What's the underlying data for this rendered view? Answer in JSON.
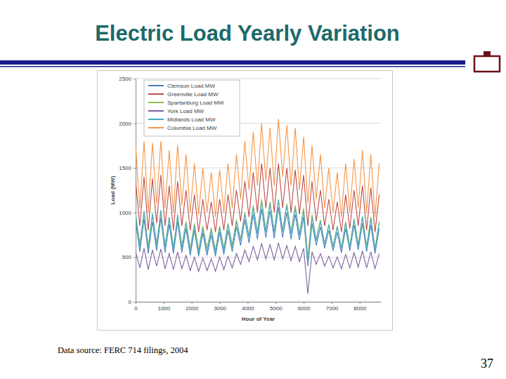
{
  "chart_data": {
    "type": "line",
    "title": "Electric Load Yearly Variation",
    "x_label": "Hour of Year",
    "y_label": "Load (MW)",
    "x": [
      0,
      150,
      300,
      450,
      600,
      750,
      900,
      1050,
      1200,
      1350,
      1500,
      1650,
      1800,
      1950,
      2100,
      2250,
      2400,
      2550,
      2700,
      2850,
      3000,
      3150,
      3300,
      3450,
      3600,
      3750,
      3900,
      4050,
      4200,
      4350,
      4500,
      4650,
      4800,
      4950,
      5100,
      5250,
      5400,
      5550,
      5700,
      5850,
      6000,
      6150,
      6300,
      6450,
      6600,
      6750,
      6900,
      7050,
      7200,
      7350,
      7500,
      7650,
      7800,
      7950,
      8100,
      8250,
      8400,
      8550,
      8700
    ],
    "series": [
      {
        "name": "Clemson Load MW",
        "color": "#4a7ebb",
        "values": [
          900,
          560,
          930,
          540,
          900,
          570,
          940,
          550,
          870,
          540,
          900,
          550,
          820,
          520,
          800,
          510,
          770,
          520,
          750,
          510,
          780,
          530,
          800,
          560,
          840,
          630,
          920,
          660,
          980,
          700,
          1040,
          720,
          1020,
          710,
          1060,
          720,
          1000,
          700,
          980,
          690,
          950,
          400,
          880,
          630,
          840,
          600,
          800,
          570,
          780,
          550,
          820,
          570,
          860,
          580,
          880,
          560,
          860,
          540,
          820
        ]
      },
      {
        "name": "Greenville Load MW",
        "color": "#be4b48",
        "values": [
          1350,
          850,
          1400,
          800,
          1380,
          880,
          1420,
          850,
          1300,
          800,
          1350,
          850,
          1250,
          800,
          1200,
          780,
          1150,
          800,
          1120,
          780,
          1150,
          800,
          1200,
          850,
          1250,
          900,
          1350,
          950,
          1450,
          1000,
          1550,
          1050,
          1500,
          1000,
          1550,
          1050,
          1500,
          1000,
          1480,
          980,
          1420,
          850,
          1350,
          900,
          1250,
          850,
          1150,
          800,
          1120,
          780,
          1200,
          820,
          1250,
          850,
          1300,
          800,
          1280,
          780,
          1200
        ]
      },
      {
        "name": "Spartanburg Load MW",
        "color": "#98b954",
        "values": [
          950,
          650,
          1000,
          620,
          980,
          660,
          1000,
          640,
          930,
          620,
          950,
          630,
          900,
          600,
          880,
          580,
          850,
          600,
          830,
          580,
          850,
          600,
          880,
          640,
          920,
          700,
          1000,
          740,
          1080,
          780,
          1150,
          800,
          1120,
          790,
          1150,
          800,
          1100,
          780,
          1080,
          760,
          1050,
          500,
          980,
          700,
          920,
          650,
          870,
          620,
          850,
          600,
          900,
          620,
          930,
          640,
          960,
          620,
          950,
          600,
          900
        ]
      },
      {
        "name": "York Load MW",
        "color": "#7d60a0",
        "values": [
          560,
          380,
          600,
          360,
          580,
          400,
          590,
          370,
          540,
          360,
          560,
          370,
          520,
          350,
          500,
          340,
          490,
          350,
          480,
          340,
          500,
          360,
          510,
          380,
          540,
          420,
          580,
          450,
          620,
          470,
          650,
          480,
          640,
          470,
          660,
          480,
          630,
          460,
          620,
          450,
          600,
          90,
          560,
          420,
          540,
          400,
          510,
          380,
          500,
          370,
          530,
          380,
          550,
          390,
          570,
          380,
          560,
          370,
          540
        ]
      },
      {
        "name": "Midlands Load MW",
        "color": "#46aac5",
        "values": [
          1000,
          600,
          1020,
          580,
          990,
          620,
          1030,
          600,
          950,
          580,
          980,
          590,
          880,
          560,
          850,
          550,
          820,
          560,
          800,
          550,
          830,
          570,
          860,
          600,
          900,
          680,
          980,
          720,
          1050,
          760,
          1120,
          780,
          1100,
          770,
          1140,
          780,
          1080,
          760,
          1050,
          740,
          1020,
          420,
          950,
          680,
          900,
          640,
          860,
          610,
          840,
          590,
          880,
          610,
          920,
          620,
          950,
          600,
          930,
          580,
          880
        ]
      },
      {
        "name": "Columbia Load MW",
        "color": "#f79646",
        "values": [
          1750,
          1050,
          1800,
          1000,
          1780,
          1100,
          1800,
          1050,
          1700,
          1000,
          1760,
          1080,
          1650,
          1000,
          1550,
          980,
          1500,
          1000,
          1450,
          950,
          1480,
          1000,
          1550,
          1050,
          1650,
          1150,
          1800,
          1250,
          1900,
          1300,
          2000,
          1350,
          1950,
          1300,
          2050,
          1400,
          1980,
          1300,
          1950,
          1250,
          1850,
          1100,
          1750,
          1150,
          1650,
          1050,
          1500,
          1000,
          1450,
          950,
          1550,
          1000,
          1600,
          1050,
          1700,
          1000,
          1650,
          950,
          1550
        ]
      }
    ],
    "xlim": [
      0,
      8760
    ],
    "xticks": [
      0,
      1000,
      2000,
      3000,
      4000,
      5000,
      6000,
      7000,
      8000
    ],
    "ylim": [
      0,
      2500
    ],
    "yticks": [
      0,
      500,
      1000,
      1500,
      2000,
      2500
    ],
    "grid": true,
    "legend": "upper left"
  },
  "slide": {
    "source": "Data source: FERC 714 filings, 2004",
    "page_number": 37
  }
}
